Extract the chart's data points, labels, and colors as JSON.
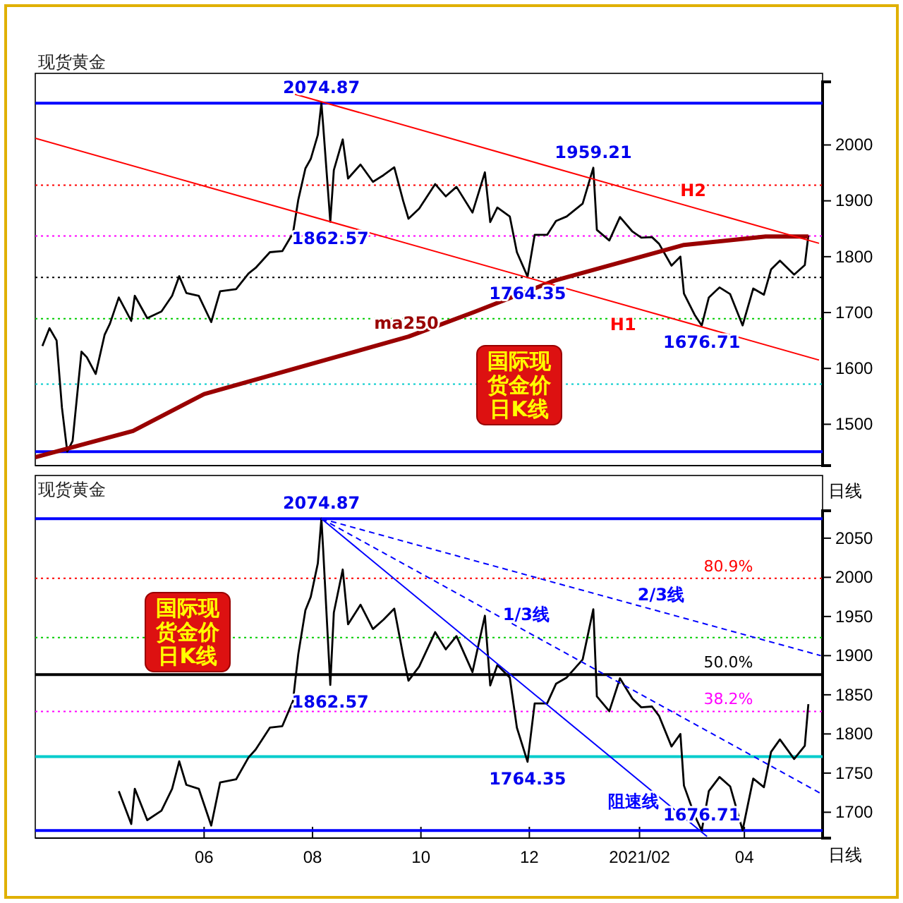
{
  "chart_data": [
    {
      "type": "line",
      "title": "现货黄金",
      "xlim": [
        "2020-02-27",
        "2021-05-15"
      ],
      "ylim": [
        1426,
        2113
      ],
      "yticks": [
        1500,
        1600,
        1700,
        1800,
        1900,
        2000
      ],
      "tick_labels": "y",
      "series": [
        {
          "color": "#000000",
          "x": [
            "2020-03-02",
            "2020-03-06",
            "2020-03-10",
            "2020-03-13",
            "2020-03-16",
            "2020-03-19",
            "2020-03-24",
            "2020-03-27",
            "2020-04-01",
            "2020-04-06",
            "2020-04-09",
            "2020-04-14",
            "2020-04-21",
            "2020-04-23",
            "2020-04-30",
            "2020-05-08",
            "2020-05-14",
            "2020-05-18",
            "2020-05-22",
            "2020-05-29",
            "2020-06-05",
            "2020-06-10",
            "2020-06-19",
            "2020-06-26",
            "2020-06-30",
            "2020-07-08",
            "2020-07-15",
            "2020-07-21",
            "2020-07-24",
            "2020-07-28",
            "2020-07-31",
            "2020-08-04",
            "2020-08-06",
            "2020-08-07",
            "2020-08-11",
            "2020-08-13",
            "2020-08-18",
            "2020-08-21",
            "2020-08-28",
            "2020-09-04",
            "2020-09-10",
            "2020-09-16",
            "2020-09-21",
            "2020-09-24",
            "2020-09-30",
            "2020-10-09",
            "2020-10-15",
            "2020-10-21",
            "2020-10-30",
            "2020-11-06",
            "2020-11-09",
            "2020-11-13",
            "2020-11-20",
            "2020-11-24",
            "2020-11-30",
            "2020-12-04",
            "2020-12-11",
            "2020-12-16",
            "2020-12-22",
            "2020-12-31",
            "2021-01-06",
            "2021-01-08",
            "2021-01-15",
            "2021-01-21",
            "2021-01-28",
            "2021-02-02",
            "2021-02-08",
            "2021-02-12",
            "2021-02-19",
            "2021-02-24",
            "2021-02-26",
            "2021-03-04",
            "2021-03-08",
            "2021-03-12",
            "2021-03-18",
            "2021-03-24",
            "2021-03-31",
            "2021-04-06",
            "2021-04-12",
            "2021-04-16",
            "2021-04-21",
            "2021-04-29",
            "2021-05-05",
            "2021-05-07"
          ],
          "values": [
            1640,
            1672,
            1650,
            1530,
            1451,
            1470,
            1630,
            1620,
            1590,
            1660,
            1680,
            1727,
            1685,
            1730,
            1690,
            1702,
            1730,
            1765,
            1735,
            1730,
            1683,
            1738,
            1742,
            1770,
            1780,
            1808,
            1810,
            1842,
            1902,
            1958,
            1975,
            2018,
            2074.87,
            2035,
            1862.57,
            1955,
            2010,
            1940,
            1965,
            1934,
            1946,
            1960,
            1900,
            1868,
            1886,
            1930,
            1908,
            1925,
            1879,
            1951,
            1862,
            1888,
            1872,
            1808,
            1764.35,
            1839,
            1839,
            1864,
            1872,
            1895,
            1959.21,
            1848,
            1829,
            1871,
            1845,
            1834,
            1835,
            1823,
            1784,
            1800,
            1734,
            1696,
            1676.71,
            1727,
            1745,
            1733,
            1677,
            1743,
            1732,
            1777,
            1793,
            1768,
            1785,
            1838
          ]
        },
        {
          "name": "ma250",
          "color": "#990000",
          "x": [
            "2020-02-27",
            "2020-04-22",
            "2020-06-01",
            "2020-09-24",
            "2020-10-31",
            "2020-12-15",
            "2021-02-26",
            "2021-04-13",
            "2021-05-07"
          ],
          "values": [
            1441,
            1488,
            1554,
            1657,
            1701,
            1757,
            1821,
            1836,
            1836
          ]
        },
        {
          "name": "H2",
          "color": "#ff0000",
          "x": [
            "2020-07-22",
            "2021-05-13"
          ],
          "values": [
            2091,
            1824
          ]
        },
        {
          "name": "H1",
          "color": "#ff0000",
          "x": [
            "2020-02-27",
            "2021-05-13"
          ],
          "values": [
            2012,
            1615
          ]
        }
      ],
      "ref_lines": [
        {
          "axis": "y",
          "value": 2074.87,
          "color": "#0000ff",
          "line_style": "solid"
        },
        {
          "axis": "y",
          "value": 1451,
          "color": "#0000ff",
          "line_style": "solid"
        },
        {
          "axis": "y",
          "value": 1928,
          "color": "#ff0000",
          "line_style": "dotted"
        },
        {
          "axis": "y",
          "value": 1837,
          "color": "#ff00ff",
          "line_style": "dotted"
        },
        {
          "axis": "y",
          "value": 1763,
          "color": "#000000",
          "line_style": "dotted"
        },
        {
          "axis": "y",
          "value": 1689,
          "color": "#00cc00",
          "line_style": "dotted"
        },
        {
          "axis": "y",
          "value": 1572,
          "color": "#00cccc",
          "line_style": "dotted"
        }
      ],
      "annotations": [
        {
          "text": "2074.87",
          "x": "2020-08-06",
          "y": 2074.87
        },
        {
          "text": "1862.57",
          "x": "2020-08-11",
          "y": 1862.57
        },
        {
          "text": "1959.21",
          "x": "2021-01-06",
          "y": 1959.21
        },
        {
          "text": "1764.35",
          "x": "2020-11-30",
          "y": 1764.35
        },
        {
          "text": "1676.71",
          "x": "2021-03-08",
          "y": 1676.71
        },
        "国际现货金价日K线"
      ]
    },
    {
      "type": "line",
      "title": "现货黄金",
      "xlim": [
        "2020-02-27",
        "2021-05-15"
      ],
      "ylim": [
        1667,
        2085
      ],
      "yticks": [
        1700,
        1750,
        1800,
        1850,
        1900,
        1950,
        2000,
        2050
      ],
      "xticks": [
        {
          "value": "2020-06-01",
          "label": "06"
        },
        {
          "value": "2020-08-01",
          "label": "08"
        },
        {
          "value": "2020-10-01",
          "label": "10"
        },
        {
          "value": "2020-12-01",
          "label": "12"
        },
        {
          "value": "2021-02-01",
          "label": "2021/02"
        },
        {
          "value": "2021-04-01",
          "label": "04"
        }
      ],
      "series": [
        {
          "color": "#000000",
          "x": [
            "2020-04-14",
            "2020-04-21",
            "2020-04-23",
            "2020-04-30",
            "2020-05-08",
            "2020-05-14",
            "2020-05-18",
            "2020-05-22",
            "2020-05-29",
            "2020-06-05",
            "2020-06-10",
            "2020-06-19",
            "2020-06-26",
            "2020-06-30",
            "2020-07-08",
            "2020-07-15",
            "2020-07-21",
            "2020-07-24",
            "2020-07-28",
            "2020-07-31",
            "2020-08-04",
            "2020-08-06",
            "2020-08-07",
            "2020-08-11",
            "2020-08-13",
            "2020-08-18",
            "2020-08-21",
            "2020-08-28",
            "2020-09-04",
            "2020-09-10",
            "2020-09-16",
            "2020-09-21",
            "2020-09-24",
            "2020-09-30",
            "2020-10-09",
            "2020-10-15",
            "2020-10-21",
            "2020-10-30",
            "2020-11-06",
            "2020-11-09",
            "2020-11-13",
            "2020-11-20",
            "2020-11-24",
            "2020-11-30",
            "2020-12-04",
            "2020-12-11",
            "2020-12-16",
            "2020-12-22",
            "2020-12-31",
            "2021-01-06",
            "2021-01-08",
            "2021-01-15",
            "2021-01-21",
            "2021-01-28",
            "2021-02-02",
            "2021-02-08",
            "2021-02-12",
            "2021-02-19",
            "2021-02-24",
            "2021-02-26",
            "2021-03-04",
            "2021-03-08",
            "2021-03-12",
            "2021-03-18",
            "2021-03-24",
            "2021-03-31",
            "2021-04-06",
            "2021-04-12",
            "2021-04-16",
            "2021-04-21",
            "2021-04-29",
            "2021-05-05",
            "2021-05-07"
          ],
          "values": [
            1727,
            1685,
            1730,
            1690,
            1702,
            1730,
            1765,
            1735,
            1730,
            1683,
            1738,
            1742,
            1770,
            1780,
            1808,
            1810,
            1842,
            1902,
            1958,
            1975,
            2018,
            2074.87,
            2035,
            1862.57,
            1955,
            2010,
            1940,
            1965,
            1934,
            1946,
            1960,
            1900,
            1868,
            1886,
            1930,
            1908,
            1925,
            1879,
            1951,
            1862,
            1888,
            1872,
            1808,
            1764.35,
            1839,
            1839,
            1864,
            1872,
            1895,
            1959.21,
            1848,
            1829,
            1871,
            1845,
            1834,
            1835,
            1823,
            1784,
            1800,
            1734,
            1696,
            1676.71,
            1727,
            1745,
            1733,
            1677,
            1743,
            1732,
            1777,
            1793,
            1768,
            1785,
            1838
          ]
        },
        {
          "name": "1/3线",
          "color": "#0000ff",
          "line_style": "dashed",
          "x": [
            "2020-08-06",
            "2021-05-14"
          ],
          "values": [
            2074.87,
            1724
          ]
        },
        {
          "name": "2/3线",
          "color": "#0000ff",
          "line_style": "dashed",
          "x": [
            "2020-08-06",
            "2021-05-14"
          ],
          "values": [
            2074.87,
            1900
          ]
        },
        {
          "name": "阻速线",
          "color": "#0000ff",
          "line_style": "solid",
          "x": [
            "2020-08-06",
            "2021-03-11"
          ],
          "values": [
            2074.87,
            1669
          ]
        }
      ],
      "ref_lines": [
        {
          "axis": "y",
          "value": 2074.87,
          "color": "#0000ff",
          "line_style": "solid"
        },
        {
          "axis": "y",
          "value": 1676.71,
          "color": "#0000ff",
          "line_style": "solid"
        },
        {
          "axis": "y",
          "value": 1998.8,
          "color": "#ff0000",
          "line_style": "dotted"
        },
        {
          "axis": "y",
          "value": 1923,
          "color": "#00cc00",
          "line_style": "dotted"
        },
        {
          "axis": "y",
          "value": 1875.8,
          "color": "#000000",
          "line_style": "solid"
        },
        {
          "axis": "y",
          "value": 1828.8,
          "color": "#ff00ff",
          "line_style": "dotted"
        },
        {
          "axis": "y",
          "value": 1771,
          "color": "#00cccc",
          "line_style": "solid"
        }
      ],
      "annotations": [
        {
          "text": "2074.87",
          "x": "2020-08-06",
          "y": 2074.87
        },
        {
          "text": "1862.57",
          "x": "2020-08-11",
          "y": 1862.57
        },
        {
          "text": "1764.35",
          "x": "2020-11-30",
          "y": 1764.35
        },
        {
          "text": "1676.71",
          "x": "2021-03-08",
          "y": 1676.71
        },
        {
          "text": "80.9%",
          "x": "2021-03-23",
          "y": 1998.8
        },
        {
          "text": "50.0%",
          "x": "2021-03-23",
          "y": 1875.8
        },
        {
          "text": "38.2%",
          "x": "2021-03-23",
          "y": 1828.8
        },
        "国际现货金价日K线",
        "日线",
        "日线"
      ]
    }
  ]
}
